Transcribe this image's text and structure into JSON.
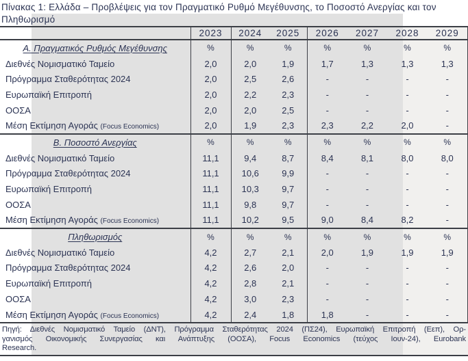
{
  "title": "Πίνακας 1: Ελλάδα – Προβλέψεις για τον Πραγματικό Ρυθμό Μεγέθυνσης, το Ποσοστό Ανεργίας και τον Πληθωρισμό",
  "years": [
    "2023",
    "2024",
    "2025",
    "2026",
    "2027",
    "2028",
    "2029"
  ],
  "sections": [
    {
      "header": "Α. Πραγματικός Ρυθμός Μεγέθυνσης",
      "units": [
        "%",
        "%",
        "%",
        "%",
        "%",
        "%",
        "%"
      ],
      "rows": [
        {
          "label": "Διεθνές Νομισματικό Ταμείο",
          "suffix": "",
          "values": [
            "2,0",
            "2,0",
            "1,9",
            "1,7",
            "1,3",
            "1,3",
            "1,3"
          ]
        },
        {
          "label": "Πρόγραμμα Σταθερότητας 2024",
          "suffix": "",
          "values": [
            "2,0",
            "2,5",
            "2,6",
            "-",
            "-",
            "-",
            "-"
          ]
        },
        {
          "label": "Ευρωπαϊκή Επιτροπή",
          "suffix": "",
          "values": [
            "2,0",
            "2,2",
            "2,3",
            "-",
            "-",
            "-",
            "-"
          ]
        },
        {
          "label": "ΟΟΣΑ",
          "suffix": "",
          "values": [
            "2,0",
            "2,0",
            "2,5",
            "-",
            "-",
            "-",
            "-"
          ]
        },
        {
          "label": "Μέση Εκτίμηση Αγοράς",
          "suffix": "(Focus Economics)",
          "values": [
            "2,0",
            "1,9",
            "2,3",
            "2,3",
            "2,2",
            "2,0",
            "-"
          ]
        }
      ]
    },
    {
      "header": "Β. Ποσοστό Ανεργίας",
      "units": [
        "%",
        "%",
        "%",
        "%",
        "%",
        "%",
        "%"
      ],
      "rows": [
        {
          "label": "Διεθνές Νομισματικό Ταμείο",
          "suffix": "",
          "values": [
            "11,1",
            "9,4",
            "8,7",
            "8,4",
            "8,1",
            "8,0",
            "8,0"
          ]
        },
        {
          "label": "Πρόγραμμα Σταθερότητας 2024",
          "suffix": "",
          "values": [
            "11,1",
            "10,6",
            "9,9",
            "-",
            "-",
            "-",
            "-"
          ]
        },
        {
          "label": "Ευρωπαϊκή Επιτροπή",
          "suffix": "",
          "values": [
            "11,1",
            "10,3",
            "9,7",
            "-",
            "-",
            "-",
            "-"
          ]
        },
        {
          "label": "ΟΟΣΑ",
          "suffix": "",
          "values": [
            "11,1",
            "9,8",
            "9,7",
            "-",
            "-",
            "-",
            "-"
          ]
        },
        {
          "label": "Μέση Εκτίμηση Αγοράς",
          "suffix": "(Focus Economics)",
          "values": [
            "11,1",
            "10,2",
            "9,5",
            "9,0",
            "8,4",
            "8,2",
            "-"
          ]
        }
      ]
    },
    {
      "header": "Πληθωρισμός",
      "units": [
        "%",
        "%",
        "%",
        "%",
        "%",
        "%",
        "%"
      ],
      "rows": [
        {
          "label": "Διεθνές Νομισματικό Ταμείο",
          "suffix": "",
          "values": [
            "4,2",
            "2,7",
            "2,1",
            "2,0",
            "1,9",
            "1,9",
            "1,9"
          ]
        },
        {
          "label": "Πρόγραμμα Σταθερότητας 2024",
          "suffix": "",
          "values": [
            "4,2",
            "2,6",
            "2,0",
            "-",
            "-",
            "-",
            "-"
          ]
        },
        {
          "label": "Ευρωπαϊκή Επιτροπή",
          "suffix": "",
          "values": [
            "4,2",
            "2,8",
            "2,1",
            "-",
            "-",
            "-",
            "-"
          ]
        },
        {
          "label": "ΟΟΣΑ",
          "suffix": "",
          "values": [
            "4,2",
            "3,0",
            "2,3",
            "-",
            "-",
            "-",
            "-"
          ]
        },
        {
          "label": "Μέση Εκτίμηση Αγοράς",
          "suffix": "(Focus Economics)",
          "values": [
            "4,2",
            "2,4",
            "1,8",
            "1,8",
            "-",
            "-",
            "-"
          ]
        }
      ]
    }
  ],
  "source_lines": [
    "Πηγή: Διεθνές Νομισματικό Ταμείο (ΔΝΤ), Πρόγραμμα Σταθερότητας 2024 (ΠΣ24), Ευρωπαϊκή Επιτροπή (Εεπ), Ορ-",
    "γανισμός Οικονομικής Συνεργασίας και Ανάπτυξης (ΟΟΣΑ), Focus Economics (τεύχος Ιουν-24), Eurobank",
    "Research."
  ],
  "colors": {
    "text": "#2b3353",
    "grid": "#3b3e45",
    "shade": "#e1e1e1",
    "shade_light": "#f1f0ee"
  }
}
